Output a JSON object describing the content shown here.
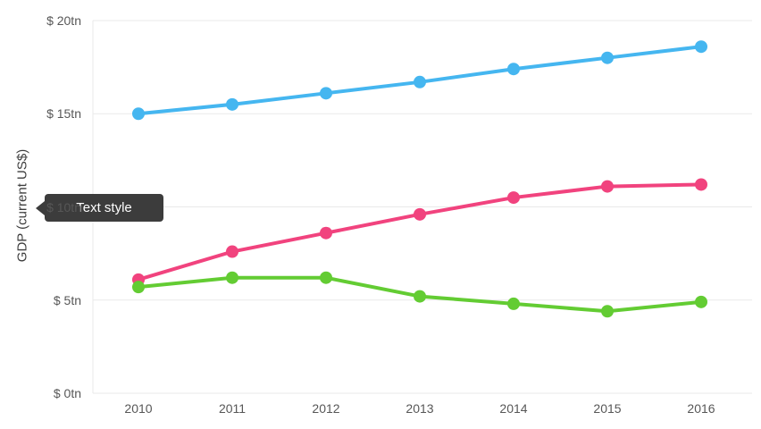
{
  "tooltip": {
    "label": "Text style",
    "background": "#3c3c3c",
    "text_color": "#ffffff"
  },
  "chart_data": {
    "type": "line",
    "title": "",
    "xlabel": "",
    "ylabel": "GDP (current US$)",
    "x": [
      2010,
      2011,
      2012,
      2013,
      2014,
      2015,
      2016
    ],
    "xtick_labels": [
      "2010",
      "2011",
      "2012",
      "2013",
      "2014",
      "2015",
      "2016"
    ],
    "ytick_labels": [
      "$ 0tn",
      "$ 5tn",
      "$ 10tn",
      "$ 15tn",
      "$ 20tn"
    ],
    "ytick_step": 5,
    "ylim": [
      0,
      20
    ],
    "grid": "horizontal",
    "legend": "none",
    "marker": "circle",
    "series": [
      {
        "name": "series-blue",
        "color": "#45b6f0",
        "values": [
          15.0,
          15.5,
          16.1,
          16.7,
          17.4,
          18.0,
          18.6
        ]
      },
      {
        "name": "series-pink",
        "color": "#f1437e",
        "values": [
          6.1,
          7.6,
          8.6,
          9.6,
          10.5,
          11.1,
          11.2
        ]
      },
      {
        "name": "series-green",
        "color": "#63cc33",
        "values": [
          5.7,
          6.2,
          6.2,
          5.2,
          4.8,
          4.4,
          4.9
        ]
      }
    ]
  },
  "colors": {
    "background": "#ffffff",
    "grid": "#e9e9e9",
    "axis_text": "#575757",
    "axis_title_text": "#3d3d3d"
  }
}
